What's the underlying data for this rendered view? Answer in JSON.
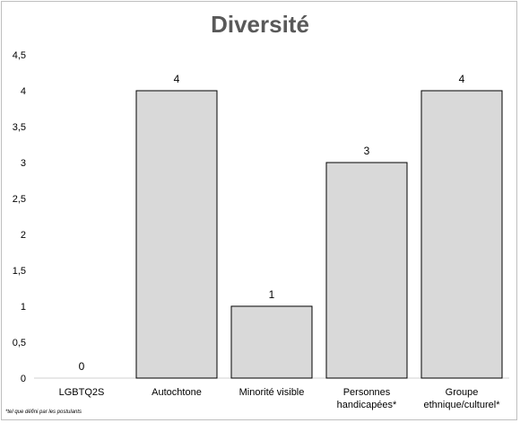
{
  "footnote": "*tel que défini par les postulants",
  "chart_data": {
    "type": "bar",
    "title": "Diversité",
    "categories": [
      "LGBTQ2S",
      "Autochtone",
      "Minorité visible",
      "Personnes handicapées*",
      "Groupe ethnique/culturel*"
    ],
    "category_lines": [
      [
        "LGBTQ2S"
      ],
      [
        "Autochtone"
      ],
      [
        "Minorité visible"
      ],
      [
        "Personnes",
        "handicapées*"
      ],
      [
        "Groupe",
        "ethnique/culturel*"
      ]
    ],
    "values": [
      0,
      4,
      1,
      3,
      4
    ],
    "data_labels": [
      "0",
      "4",
      "1",
      "3",
      "4"
    ],
    "ylim": [
      0,
      4.5
    ],
    "yticks": [
      0,
      0.5,
      1,
      1.5,
      2,
      2.5,
      3,
      3.5,
      4,
      4.5
    ],
    "ytick_labels": [
      "0",
      "0,5",
      "1",
      "1,5",
      "2",
      "2,5",
      "3",
      "3,5",
      "4",
      "4,5"
    ],
    "grid": false,
    "bar_color": "#d9d9d9",
    "bar_edge_color": "#000000"
  }
}
